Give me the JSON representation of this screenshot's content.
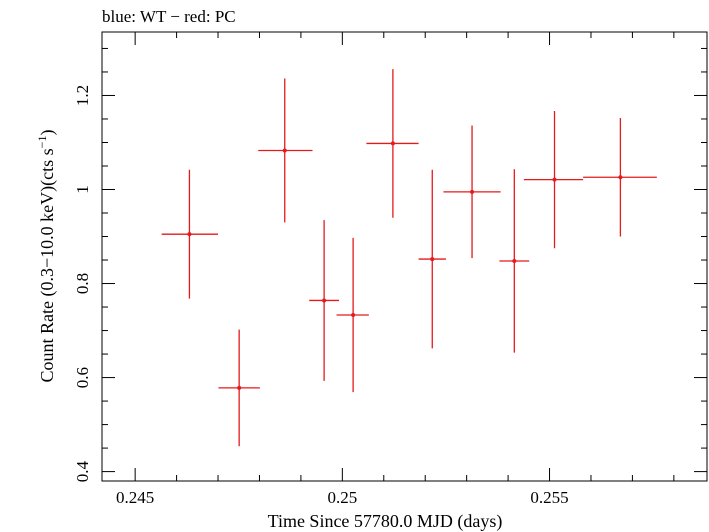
{
  "chart_data": {
    "type": "scatter",
    "title": "blue: WT − red: PC",
    "xlabel": "Time Since 57780.0 MJD (days)",
    "ylabel": "Count Rate (0.3−10.0 keV)(cts s",
    "ylabel_superscript": "−1",
    "ylabel_suffix": ")",
    "xlim": [
      0.2442,
      0.2588
    ],
    "ylim": [
      0.38,
      1.335
    ],
    "x_ticks": [
      0.245,
      0.25,
      0.255
    ],
    "x_tick_labels": [
      "0.245",
      "0.25",
      "0.255"
    ],
    "y_ticks": [
      0.4,
      0.6,
      0.8,
      1.0,
      1.2
    ],
    "y_tick_labels": [
      "0.4",
      "0.6",
      "0.8",
      "1",
      "1.2"
    ],
    "grid": false,
    "series": [
      {
        "color": "#e41a1c",
        "points": [
          {
            "x": 0.24631,
            "y": 0.905,
            "xerr_lo": 0.00067,
            "xerr_hi": 0.00069,
            "yerr": 0.137
          },
          {
            "x": 0.24751,
            "y": 0.578,
            "xerr_lo": 0.0005,
            "xerr_hi": 0.0005,
            "yerr": 0.124
          },
          {
            "x": 0.24861,
            "y": 1.083,
            "xerr_lo": 0.00064,
            "xerr_hi": 0.00067,
            "yerr": 0.153
          },
          {
            "x": 0.24956,
            "y": 0.764,
            "xerr_lo": 0.00036,
            "xerr_hi": 0.00036,
            "yerr": 0.171
          },
          {
            "x": 0.25026,
            "y": 0.733,
            "xerr_lo": 0.0004,
            "xerr_hi": 0.00038,
            "yerr": 0.164
          },
          {
            "x": 0.25122,
            "y": 1.098,
            "xerr_lo": 0.00064,
            "xerr_hi": 0.00062,
            "yerr": 0.158
          },
          {
            "x": 0.25217,
            "y": 0.852,
            "xerr_lo": 0.00033,
            "xerr_hi": 0.00033,
            "yerr": 0.19
          },
          {
            "x": 0.25313,
            "y": 0.995,
            "xerr_lo": 0.00069,
            "xerr_hi": 0.00069,
            "yerr": 0.141
          },
          {
            "x": 0.25415,
            "y": 0.848,
            "xerr_lo": 0.00036,
            "xerr_hi": 0.00036,
            "yerr": 0.195
          },
          {
            "x": 0.25512,
            "y": 1.021,
            "xerr_lo": 0.00074,
            "xerr_hi": 0.00069,
            "yerr": 0.146
          },
          {
            "x": 0.25671,
            "y": 1.026,
            "xerr_lo": 0.0009,
            "xerr_hi": 0.00088,
            "yerr": 0.126
          }
        ]
      }
    ]
  }
}
